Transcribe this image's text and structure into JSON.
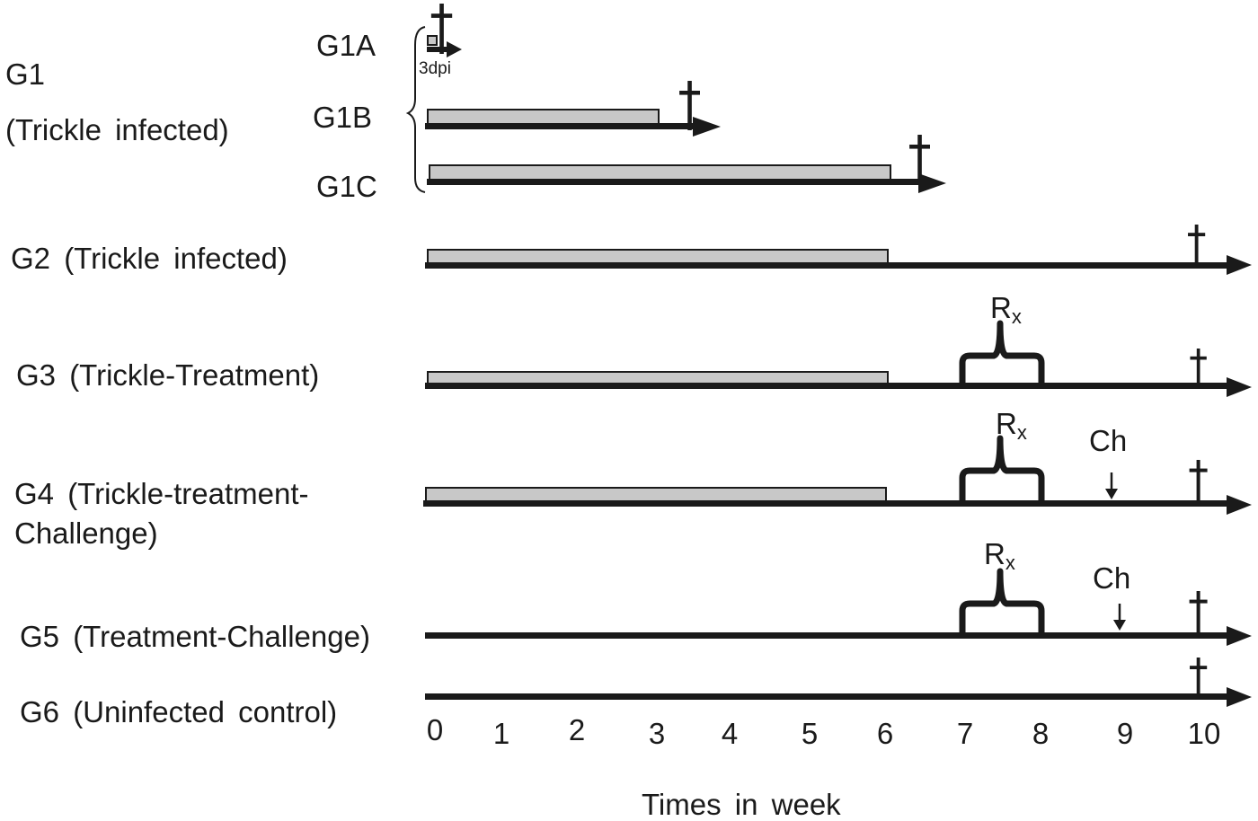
{
  "groups": {
    "g1": {
      "id": "G1",
      "desc": "(Trickle infected)"
    },
    "g1a": {
      "label": "G1A",
      "note": "3dpi"
    },
    "g1b": {
      "label": "G1B"
    },
    "g1c": {
      "label": "G1C"
    },
    "g2": {
      "label": "G2 (Trickle infected)"
    },
    "g3": {
      "label": "G3 (Trickle-Treatment)"
    },
    "g4": {
      "line1": "G4 (Trickle-treatment-",
      "line2": "Challenge)"
    },
    "g5": {
      "label": "G5 (Treatment-Challenge)"
    },
    "g6": {
      "label": "G6 (Uninfected control)"
    }
  },
  "markers": {
    "treatment_main": "R",
    "treatment_sub": "x",
    "challenge": "Ch"
  },
  "axis": {
    "title": "Times in week",
    "ticks": [
      "0",
      "1",
      "2",
      "3",
      "4",
      "5",
      "6",
      "7",
      "8",
      "9",
      "10"
    ]
  }
}
